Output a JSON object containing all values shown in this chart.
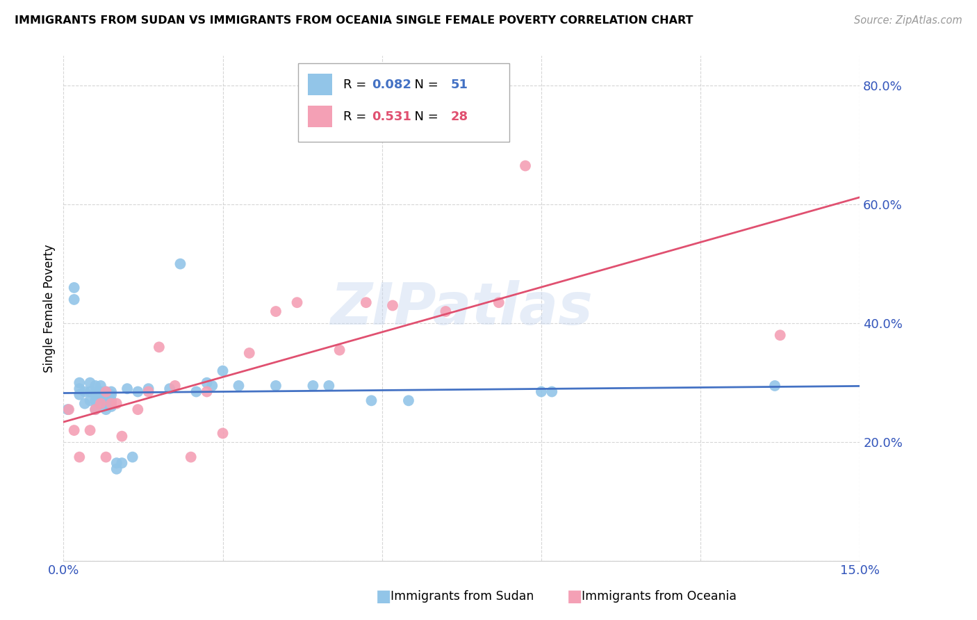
{
  "title": "IMMIGRANTS FROM SUDAN VS IMMIGRANTS FROM OCEANIA SINGLE FEMALE POVERTY CORRELATION CHART",
  "source": "Source: ZipAtlas.com",
  "ylabel_label": "Single Female Poverty",
  "xlim": [
    0.0,
    0.15
  ],
  "ylim": [
    0.0,
    0.85
  ],
  "legend1_R": "0.082",
  "legend1_N": "51",
  "legend2_R": "0.531",
  "legend2_N": "28",
  "color_sudan": "#92c5e8",
  "color_oceania": "#f4a0b5",
  "trendline_sudan": "#4472c4",
  "trendline_oceania": "#e05070",
  "watermark": "ZIPatlas",
  "sudan_x": [
    0.0008,
    0.002,
    0.002,
    0.003,
    0.003,
    0.003,
    0.004,
    0.004,
    0.005,
    0.005,
    0.005,
    0.006,
    0.006,
    0.006,
    0.006,
    0.006,
    0.007,
    0.007,
    0.007,
    0.007,
    0.007,
    0.008,
    0.008,
    0.008,
    0.008,
    0.009,
    0.009,
    0.009,
    0.009,
    0.01,
    0.01,
    0.011,
    0.012,
    0.013,
    0.014,
    0.016,
    0.02,
    0.022,
    0.025,
    0.027,
    0.028,
    0.03,
    0.033,
    0.04,
    0.047,
    0.05,
    0.058,
    0.065,
    0.09,
    0.092,
    0.134
  ],
  "sudan_y": [
    0.255,
    0.44,
    0.46,
    0.28,
    0.29,
    0.3,
    0.265,
    0.285,
    0.27,
    0.285,
    0.3,
    0.255,
    0.27,
    0.28,
    0.285,
    0.295,
    0.265,
    0.275,
    0.28,
    0.285,
    0.295,
    0.255,
    0.265,
    0.28,
    0.285,
    0.26,
    0.27,
    0.28,
    0.285,
    0.155,
    0.165,
    0.165,
    0.29,
    0.175,
    0.285,
    0.29,
    0.29,
    0.5,
    0.285,
    0.3,
    0.295,
    0.32,
    0.295,
    0.295,
    0.295,
    0.295,
    0.27,
    0.27,
    0.285,
    0.285,
    0.295
  ],
  "oceania_x": [
    0.001,
    0.002,
    0.003,
    0.005,
    0.006,
    0.007,
    0.008,
    0.008,
    0.009,
    0.01,
    0.011,
    0.014,
    0.016,
    0.018,
    0.021,
    0.024,
    0.027,
    0.03,
    0.035,
    0.04,
    0.044,
    0.052,
    0.057,
    0.062,
    0.072,
    0.082,
    0.087,
    0.135
  ],
  "oceania_y": [
    0.255,
    0.22,
    0.175,
    0.22,
    0.255,
    0.265,
    0.175,
    0.285,
    0.265,
    0.265,
    0.21,
    0.255,
    0.285,
    0.36,
    0.295,
    0.175,
    0.285,
    0.215,
    0.35,
    0.42,
    0.435,
    0.355,
    0.435,
    0.43,
    0.42,
    0.435,
    0.665,
    0.38
  ]
}
